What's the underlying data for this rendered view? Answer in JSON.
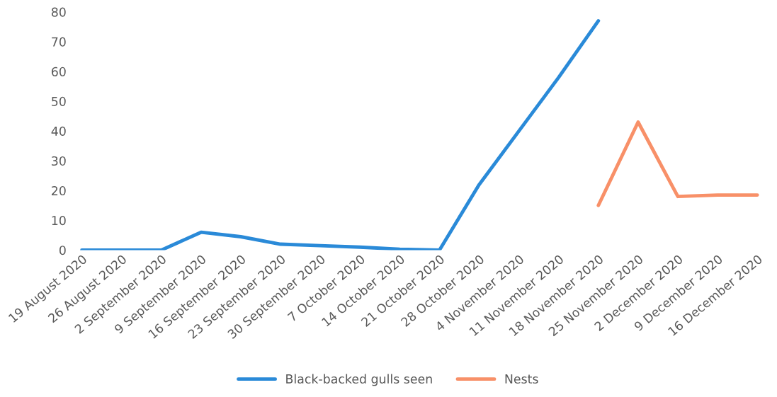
{
  "chart_data": {
    "type": "line",
    "categories": [
      "19 August 2020",
      "26 August 2020",
      "2 September 2020",
      "9 September 2020",
      "16 September 2020",
      "23 September 2020",
      "30 September 2020",
      "7 October 2020",
      "14 October 2020",
      "21 October 2020",
      "28 October 2020",
      "4 November 2020",
      "11 November 2020",
      "18 November 2020",
      "25 November 2020",
      "2 December 2020",
      "9 December 2020",
      "16 December 2020"
    ],
    "series": [
      {
        "name": "Black-backed gulls seen",
        "color": "#2a8ad8",
        "values": [
          0,
          0,
          0,
          6,
          4.5,
          2,
          1.5,
          1,
          0.3,
          0,
          22,
          40,
          58,
          77,
          null,
          null,
          null,
          null
        ]
      },
      {
        "name": "Nests",
        "color": "#f89068",
        "values": [
          null,
          null,
          null,
          null,
          null,
          null,
          null,
          null,
          null,
          null,
          null,
          null,
          null,
          15,
          43,
          18,
          18.5,
          18.5
        ]
      }
    ],
    "ylim": [
      0,
      80
    ],
    "yticks": [
      0,
      10,
      20,
      30,
      40,
      50,
      60,
      70,
      80
    ],
    "grid": false,
    "legend": "bottom",
    "marker": "none",
    "line_style": "solid"
  }
}
